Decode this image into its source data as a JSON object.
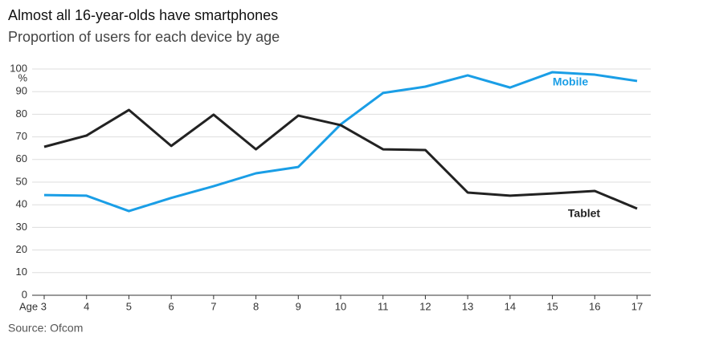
{
  "chart_data": {
    "type": "line",
    "title": "Almost all 16-year-olds have smartphones",
    "subtitle": "Proportion of users for each device by age",
    "y_unit": "%",
    "source": "Source: Ofcom",
    "x": [
      3,
      4,
      5,
      6,
      7,
      8,
      9,
      10,
      11,
      12,
      13,
      14,
      15,
      16,
      17
    ],
    "xlim": [
      3,
      17
    ],
    "xticks": [
      {
        "value": 3,
        "label": "Age 3"
      },
      4,
      5,
      6,
      7,
      8,
      9,
      10,
      11,
      12,
      13,
      14,
      15,
      16,
      17
    ],
    "ylim": [
      0,
      100
    ],
    "yticks": [
      0,
      10,
      20,
      30,
      40,
      50,
      60,
      70,
      80,
      90,
      100
    ],
    "grid": true,
    "series": [
      {
        "name": "Mobile",
        "color": "#1a9ee6",
        "values": [
          44.3,
          44,
          37.2,
          43,
          48.2,
          53.9,
          56.7,
          75.5,
          89.4,
          92.2,
          97.2,
          91.8,
          98.6,
          97.5,
          94.7
        ]
      },
      {
        "name": "Tablet",
        "color": "#222222",
        "values": [
          65.6,
          70.6,
          81.9,
          66,
          79.8,
          64.5,
          79.4,
          75.2,
          64.5,
          64.2,
          45.4,
          44,
          45,
          46.1,
          38.3
        ]
      }
    ]
  }
}
